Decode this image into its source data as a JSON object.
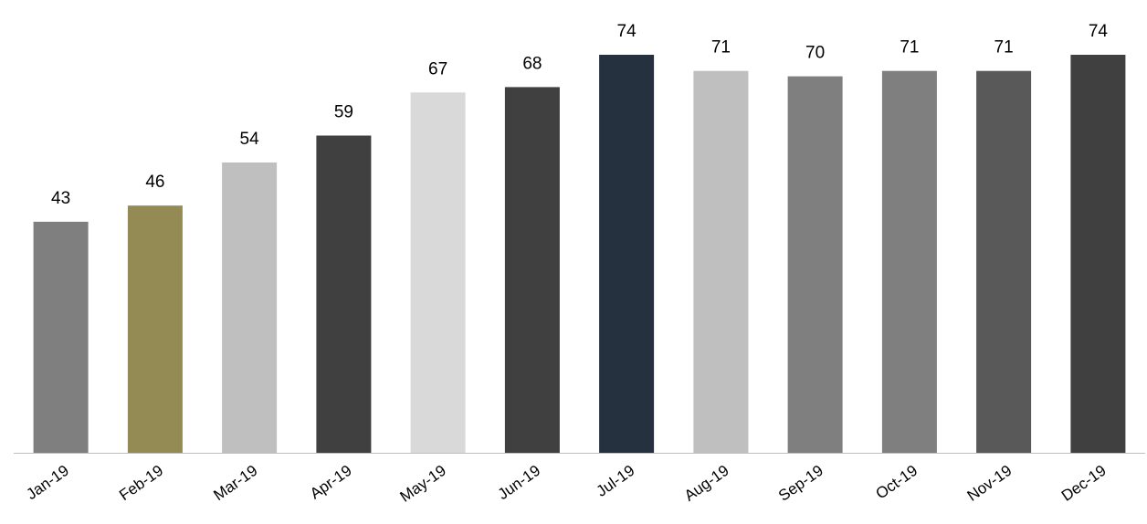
{
  "chart_data": {
    "type": "bar",
    "title": "",
    "xlabel": "",
    "ylabel": "",
    "categories": [
      "Jan-19",
      "Feb-19",
      "Mar-19",
      "Apr-19",
      "May-19",
      "Jun-19",
      "Jul-19",
      "Aug-19",
      "Sep-19",
      "Oct-19",
      "Nov-19",
      "Dec-19"
    ],
    "values": [
      43,
      46,
      54,
      59,
      67,
      68,
      74,
      71,
      70,
      71,
      71,
      74
    ],
    "data_labels": [
      "43",
      "46",
      "54",
      "59",
      "67",
      "68",
      "74",
      "71",
      "70",
      "71",
      "71",
      "74"
    ],
    "bar_colors": [
      "#7f7f7f",
      "#948a54",
      "#bfbfbf",
      "#404040",
      "#d9d9d9",
      "#404040",
      "#263140",
      "#bfbfbf",
      "#7f7f7f",
      "#7f7f7f",
      "#595959",
      "#404040"
    ],
    "ylim": [
      0,
      74
    ],
    "grid": false,
    "legend": "none"
  }
}
